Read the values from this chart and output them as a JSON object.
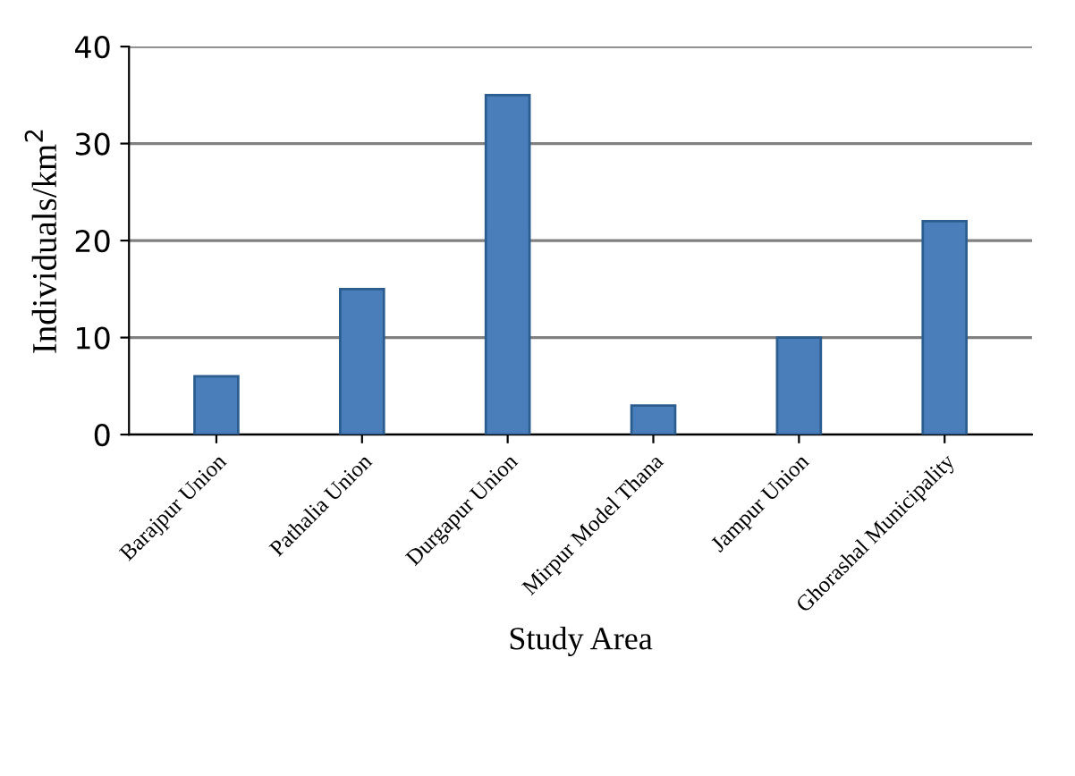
{
  "chart_data": {
    "type": "bar",
    "xlabel": "Study Area",
    "ylabel": "Individuals/km$^{2}$",
    "categories": [
      "Barajpur Union",
      "Pathalia Union",
      "Durgapur Union",
      "Mirpur Model Thana",
      "Jampur Union",
      "Ghorashal Municipality"
    ],
    "values": [
      6,
      15,
      35,
      3,
      10,
      22
    ],
    "color": "#4a7ebb",
    "ylim": [
      0,
      40
    ],
    "yticks": [
      0,
      10,
      20,
      30,
      40
    ],
    "grid": "y"
  }
}
